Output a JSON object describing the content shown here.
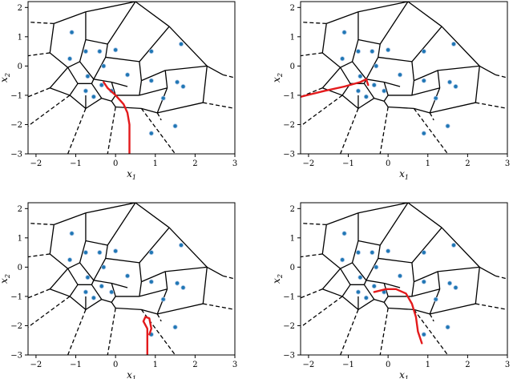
{
  "chart_data": {
    "type": "scatter",
    "description_of_layout": "2x2 grid of identical Voronoi diagrams with a red trajectory",
    "xlabel": "x1",
    "ylabel": "x2",
    "xlim": [
      -2.2,
      3.0
    ],
    "ylim": [
      -3.0,
      2.2
    ],
    "xticks": [
      -2,
      -1,
      0,
      1,
      2,
      3
    ],
    "yticks": [
      -3,
      -2,
      -1,
      0,
      1,
      2
    ],
    "point_color": "#1f77b4",
    "cell_edge_color": "#000000",
    "trajectory_color": "#e31a1c",
    "points": [
      [
        -1.1,
        1.15
      ],
      [
        -1.15,
        0.25
      ],
      [
        -0.75,
        0.5
      ],
      [
        -0.7,
        -0.35
      ],
      [
        -0.75,
        -0.85
      ],
      [
        -0.55,
        -1.05
      ],
      [
        -0.4,
        0.5
      ],
      [
        -0.3,
        0.0
      ],
      [
        -0.35,
        -0.65
      ],
      [
        -0.1,
        -0.85
      ],
      [
        0.0,
        0.55
      ],
      [
        0.3,
        -0.3
      ],
      [
        0.9,
        0.5
      ],
      [
        1.65,
        0.75
      ],
      [
        0.9,
        -0.5
      ],
      [
        1.55,
        -0.55
      ],
      [
        1.7,
        -0.7
      ],
      [
        1.2,
        -1.1
      ],
      [
        0.9,
        -2.3
      ],
      [
        1.5,
        -2.05
      ]
    ],
    "solid_edges": [
      [
        [
          -1.55,
          1.45
        ],
        [
          -0.75,
          1.85
        ]
      ],
      [
        [
          -0.75,
          1.85
        ],
        [
          0.5,
          2.2
        ]
      ],
      [
        [
          0.5,
          2.2
        ],
        [
          1.35,
          1.35
        ]
      ],
      [
        [
          1.35,
          1.35
        ],
        [
          2.3,
          0.0
        ]
      ],
      [
        [
          2.3,
          0.0
        ],
        [
          2.7,
          -0.3
        ]
      ],
      [
        [
          2.3,
          0.0
        ],
        [
          2.2,
          -1.25
        ]
      ],
      [
        [
          2.2,
          -1.25
        ],
        [
          1.05,
          -1.6
        ]
      ],
      [
        [
          1.05,
          -1.6
        ],
        [
          0.65,
          -1.45
        ]
      ],
      [
        [
          0.65,
          -1.45
        ],
        [
          0.0,
          -1.4
        ]
      ],
      [
        [
          0.0,
          -1.4
        ],
        [
          -0.1,
          -1.2
        ]
      ],
      [
        [
          -0.1,
          -1.2
        ],
        [
          -0.35,
          -1.1
        ]
      ],
      [
        [
          -0.35,
          -1.1
        ],
        [
          -0.75,
          -1.45
        ]
      ],
      [
        [
          -0.75,
          -1.45
        ],
        [
          -1.15,
          -1.0
        ]
      ],
      [
        [
          -1.15,
          -1.0
        ],
        [
          -1.65,
          -0.75
        ]
      ],
      [
        [
          -1.65,
          -0.75
        ],
        [
          -1.2,
          -0.05
        ]
      ],
      [
        [
          -1.2,
          -0.05
        ],
        [
          -1.65,
          0.45
        ]
      ],
      [
        [
          -1.65,
          0.45
        ],
        [
          -1.55,
          1.45
        ]
      ],
      [
        [
          -1.2,
          -0.05
        ],
        [
          -0.9,
          0.15
        ]
      ],
      [
        [
          -0.9,
          0.15
        ],
        [
          -0.75,
          0.9
        ]
      ],
      [
        [
          -0.75,
          0.9
        ],
        [
          -0.75,
          1.85
        ]
      ],
      [
        [
          -0.75,
          0.9
        ],
        [
          -0.2,
          0.75
        ]
      ],
      [
        [
          -0.2,
          0.75
        ],
        [
          0.5,
          2.2
        ]
      ],
      [
        [
          -0.2,
          0.75
        ],
        [
          -0.25,
          0.3
        ]
      ],
      [
        [
          -0.25,
          0.3
        ],
        [
          0.6,
          0.15
        ]
      ],
      [
        [
          0.6,
          0.15
        ],
        [
          1.35,
          1.35
        ]
      ],
      [
        [
          0.6,
          0.15
        ],
        [
          0.65,
          -0.5
        ]
      ],
      [
        [
          0.65,
          -0.5
        ],
        [
          0.6,
          -1.0
        ]
      ],
      [
        [
          0.6,
          -1.0
        ],
        [
          0.0,
          -1.0
        ]
      ],
      [
        [
          0.0,
          -1.0
        ],
        [
          -0.1,
          -1.2
        ]
      ],
      [
        [
          0.0,
          -1.0
        ],
        [
          -0.1,
          -0.55
        ]
      ],
      [
        [
          -0.1,
          -0.55
        ],
        [
          0.3,
          -0.7
        ]
      ],
      [
        [
          -0.1,
          -0.55
        ],
        [
          -0.55,
          -0.45
        ]
      ],
      [
        [
          -0.55,
          -0.45
        ],
        [
          -0.25,
          0.3
        ]
      ],
      [
        [
          -0.55,
          -0.45
        ],
        [
          -0.9,
          0.15
        ]
      ],
      [
        [
          -0.55,
          -0.45
        ],
        [
          -0.6,
          -0.6
        ]
      ],
      [
        [
          -0.6,
          -0.6
        ],
        [
          -0.35,
          -1.1
        ]
      ],
      [
        [
          -0.6,
          -0.6
        ],
        [
          -0.95,
          -0.6
        ]
      ],
      [
        [
          -0.95,
          -0.6
        ],
        [
          -1.15,
          -1.0
        ]
      ],
      [
        [
          -0.95,
          -0.6
        ],
        [
          -1.2,
          -0.05
        ]
      ],
      [
        [
          0.65,
          -0.5
        ],
        [
          1.25,
          -0.15
        ]
      ],
      [
        [
          1.25,
          -0.15
        ],
        [
          2.3,
          0.0
        ]
      ],
      [
        [
          1.25,
          -0.15
        ],
        [
          1.3,
          -0.75
        ]
      ],
      [
        [
          1.3,
          -0.75
        ],
        [
          1.05,
          -1.6
        ]
      ],
      [
        [
          1.3,
          -0.75
        ],
        [
          0.6,
          -1.0
        ]
      ],
      [
        [
          -0.75,
          -1.45
        ],
        [
          -0.75,
          -1.0
        ]
      ]
    ],
    "dashed_edges": [
      [
        [
          -1.55,
          1.45
        ],
        [
          -2.2,
          1.5
        ]
      ],
      [
        [
          -1.65,
          0.45
        ],
        [
          -2.2,
          0.35
        ]
      ],
      [
        [
          -1.65,
          -0.75
        ],
        [
          -2.2,
          -1.05
        ]
      ],
      [
        [
          -1.15,
          -1.0
        ],
        [
          -2.2,
          -2.05
        ]
      ],
      [
        [
          -0.75,
          -1.45
        ],
        [
          -1.2,
          -3.0
        ]
      ],
      [
        [
          0.0,
          -1.4
        ],
        [
          -0.2,
          -3.0
        ]
      ],
      [
        [
          0.65,
          -1.45
        ],
        [
          1.5,
          -3.0
        ]
      ],
      [
        [
          1.05,
          -1.6
        ],
        [
          1.15,
          -1.85
        ]
      ],
      [
        [
          2.2,
          -1.25
        ],
        [
          3.0,
          -1.45
        ]
      ],
      [
        [
          2.7,
          -0.3
        ],
        [
          3.0,
          -0.4
        ]
      ]
    ],
    "trajectories": [
      [
        [
          0.35,
          -3.0
        ],
        [
          0.35,
          -2.5
        ],
        [
          0.35,
          -2.0
        ],
        [
          0.3,
          -1.6
        ],
        [
          0.2,
          -1.3
        ],
        [
          0.0,
          -1.0
        ],
        [
          -0.2,
          -0.75
        ],
        [
          -0.3,
          -0.55
        ]
      ],
      [
        [
          -2.2,
          -1.05
        ],
        [
          -1.6,
          -0.85
        ],
        [
          -1.1,
          -0.7
        ],
        [
          -0.7,
          -0.55
        ],
        [
          -0.55,
          -0.45
        ],
        [
          -0.5,
          -0.65
        ]
      ],
      [
        [
          0.8,
          -3.0
        ],
        [
          0.8,
          -2.6
        ],
        [
          0.8,
          -2.1
        ],
        [
          0.7,
          -1.85
        ],
        [
          0.75,
          -1.7
        ],
        [
          0.85,
          -1.75
        ],
        [
          0.9,
          -2.1
        ],
        [
          0.85,
          -2.3
        ]
      ],
      [
        [
          0.85,
          -2.6
        ],
        [
          0.75,
          -2.2
        ],
        [
          0.7,
          -1.7
        ],
        [
          0.6,
          -1.25
        ],
        [
          0.45,
          -0.9
        ],
        [
          0.2,
          -0.75
        ],
        [
          -0.05,
          -0.75
        ],
        [
          -0.35,
          -0.85
        ]
      ]
    ]
  },
  "panels": [
    {
      "xlabel_main": "x",
      "xlabel_sub": "1",
      "ylabel_main": "x",
      "ylabel_sub": "2",
      "xtick_labels": [
        "−2",
        "−1",
        "0",
        "1",
        "2",
        "3"
      ],
      "ytick_labels": [
        "−3",
        "−2",
        "−1",
        "0",
        "1",
        "2"
      ]
    },
    {
      "xlabel_main": "x",
      "xlabel_sub": "1",
      "ylabel_main": "x",
      "ylabel_sub": "2",
      "xtick_labels": [
        "−2",
        "−1",
        "0",
        "1",
        "2",
        "3"
      ],
      "ytick_labels": [
        "−3",
        "−2",
        "−1",
        "0",
        "1",
        "2"
      ]
    },
    {
      "xlabel_main": "x",
      "xlabel_sub": "1",
      "ylabel_main": "x",
      "ylabel_sub": "2",
      "xtick_labels": [
        "−2",
        "−1",
        "0",
        "1",
        "2",
        "3"
      ],
      "ytick_labels": [
        "−3",
        "−2",
        "−1",
        "0",
        "1",
        "2"
      ]
    },
    {
      "xlabel_main": "x",
      "xlabel_sub": "1",
      "ylabel_main": "x",
      "ylabel_sub": "2",
      "xtick_labels": [
        "−2",
        "−1",
        "0",
        "1",
        "2",
        "3"
      ],
      "ytick_labels": [
        "−3",
        "−2",
        "−1",
        "0",
        "1",
        "2"
      ]
    }
  ]
}
